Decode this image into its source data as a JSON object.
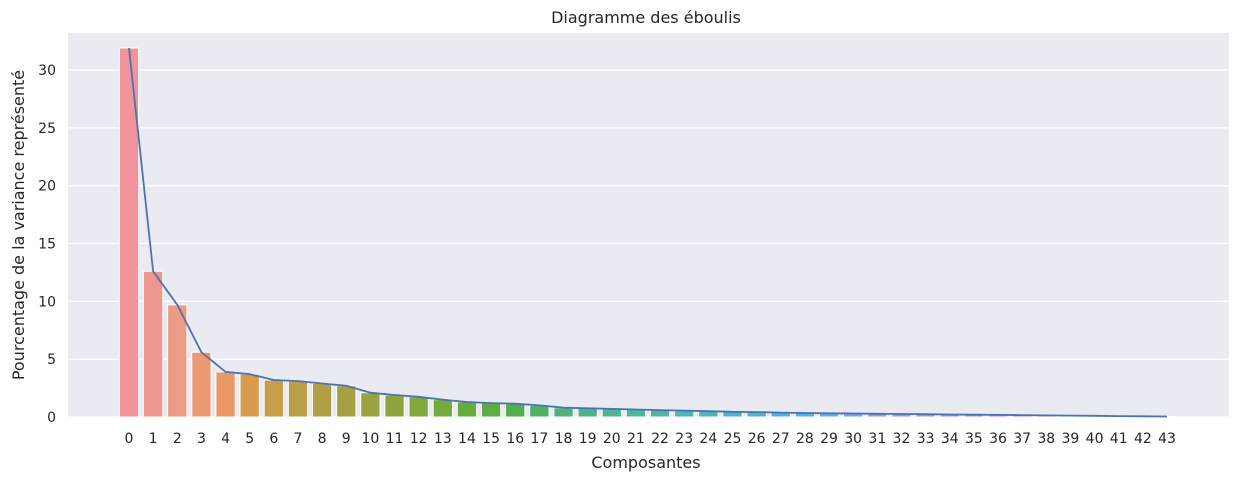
{
  "chart_data": {
    "type": "bar",
    "title": "Diagramme des éboulis",
    "xlabel": "Composantes",
    "ylabel": "Pourcentage de la variance représenté",
    "ylim": [
      0,
      33.2
    ],
    "yticks": [
      "0",
      "5",
      "10",
      "15",
      "20",
      "25",
      "30"
    ],
    "grid": true,
    "categories": [
      "0",
      "1",
      "2",
      "3",
      "4",
      "5",
      "6",
      "7",
      "8",
      "9",
      "10",
      "11",
      "12",
      "13",
      "14",
      "15",
      "16",
      "17",
      "18",
      "19",
      "20",
      "21",
      "22",
      "23",
      "24",
      "25",
      "26",
      "27",
      "28",
      "29",
      "30",
      "31",
      "32",
      "33",
      "34",
      "35",
      "36",
      "37",
      "38",
      "39",
      "40",
      "41",
      "42",
      "43"
    ],
    "values": [
      31.9,
      12.6,
      9.7,
      5.6,
      3.9,
      3.7,
      3.2,
      3.1,
      2.9,
      2.7,
      2.1,
      1.9,
      1.75,
      1.5,
      1.3,
      1.2,
      1.15,
      1.0,
      0.8,
      0.75,
      0.7,
      0.65,
      0.6,
      0.55,
      0.5,
      0.45,
      0.42,
      0.38,
      0.35,
      0.32,
      0.3,
      0.28,
      0.26,
      0.24,
      0.22,
      0.2,
      0.18,
      0.16,
      0.14,
      0.12,
      0.1,
      0.08,
      0.06,
      0.04
    ],
    "line_color": "#4c72b0",
    "background_color": "#eaeaf2",
    "grid_color": "#ffffff",
    "bar_colors": [
      "#f0939b",
      "#ee9790",
      "#ed9b86",
      "#ec9a75",
      "#e89965",
      "#d89a4c",
      "#c89e4b",
      "#bc9e48",
      "#b19f45",
      "#a5a043",
      "#9aa341",
      "#8ea43f",
      "#81a83d",
      "#73ab3d",
      "#66ac40",
      "#5aae44",
      "#50b04f",
      "#4db16a",
      "#4db27b",
      "#4db388",
      "#4db494",
      "#4db49e",
      "#4db5a9",
      "#4db5b3",
      "#4eb5bd",
      "#50b4c7",
      "#52b3d0",
      "#55b1da",
      "#59afe3",
      "#66abec",
      "#7aa5f2",
      "#8d9ef5",
      "#9d97f6",
      "#ab90f6",
      "#b98af5",
      "#c685f1",
      "#d180ec",
      "#dc7ce4",
      "#e57adb",
      "#ec7cd2",
      "#f07ec7",
      "#f281bc",
      "#f285b1",
      "#f289a6"
    ]
  }
}
